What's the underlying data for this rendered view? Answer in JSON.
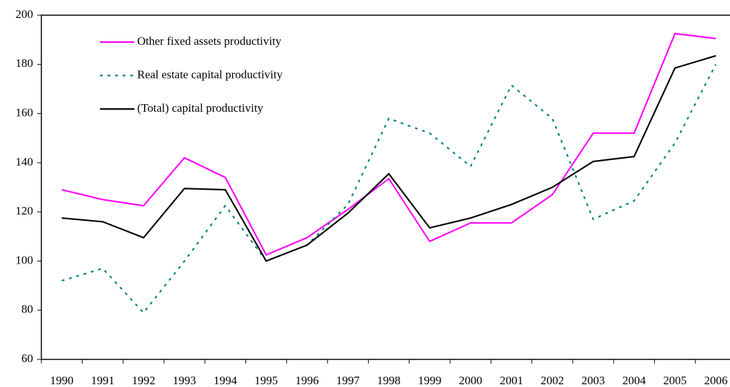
{
  "chart_data": {
    "type": "line",
    "categories": [
      "1990",
      "1991",
      "1992",
      "1993",
      "1994",
      "1995",
      "1996",
      "1997",
      "1998",
      "1999",
      "2000",
      "2001",
      "2002",
      "2003",
      "2004",
      "2005",
      "2006"
    ],
    "series": [
      {
        "name": "Other fixed assets productivity",
        "color": "#ff00ff",
        "linestyle": "solid",
        "values": [
          129,
          125,
          122.5,
          142,
          134,
          102.5,
          109.5,
          121,
          133.5,
          108,
          115.5,
          115.5,
          127,
          152,
          152,
          192.5,
          190.5
        ]
      },
      {
        "name": "Real estate capital productivity",
        "color": "#008080",
        "linestyle": "dotted",
        "values": [
          92,
          97,
          79,
          100,
          122.5,
          100,
          106.5,
          123,
          158,
          152,
          138.5,
          171.5,
          158,
          117,
          124.5,
          148,
          180
        ]
      },
      {
        "name": "(Total) capital productivity",
        "color": "#000000",
        "linestyle": "solid",
        "values": [
          117.5,
          116,
          109.5,
          129.5,
          129,
          100,
          106.5,
          119.5,
          135.5,
          113.5,
          117.5,
          123,
          130,
          140.5,
          142.5,
          178.5,
          183.5
        ]
      }
    ],
    "ylim": [
      60,
      200
    ],
    "yticks": [
      60,
      80,
      100,
      120,
      140,
      160,
      180,
      200
    ],
    "legend": "upper left",
    "grid": false
  }
}
